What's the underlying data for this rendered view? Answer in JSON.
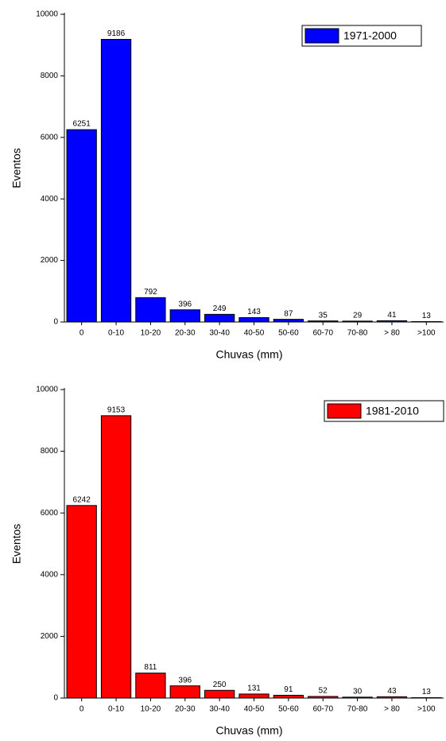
{
  "chart_data": [
    {
      "type": "bar",
      "x_label": "Chuvas (mm)",
      "y_label": "Eventos",
      "categories": [
        "0",
        "0-10",
        "10-20",
        "20-30",
        "30-40",
        "40-50",
        "50-60",
        "60-70",
        "70-80",
        "> 80",
        ">100"
      ],
      "series": [
        {
          "name": "1971-2000",
          "color": "#0000ff",
          "values": [
            6251,
            9186,
            792,
            396,
            249,
            143,
            87,
            35,
            29,
            41,
            13
          ]
        }
      ],
      "ylim": [
        0,
        10000
      ],
      "yticks": [
        0,
        2000,
        4000,
        6000,
        8000,
        10000
      ],
      "legend": "upper-right"
    },
    {
      "type": "bar",
      "x_label": "Chuvas (mm)",
      "y_label": "Eventos",
      "categories": [
        "0",
        "0-10",
        "10-20",
        "20-30",
        "30-40",
        "40-50",
        "50-60",
        "60-70",
        "70-80",
        "> 80",
        ">100"
      ],
      "series": [
        {
          "name": "1981-2010",
          "color": "#ff0000",
          "values": [
            6242,
            9153,
            811,
            396,
            250,
            131,
            91,
            52,
            30,
            43,
            13
          ]
        }
      ],
      "ylim": [
        0,
        10000
      ],
      "yticks": [
        0,
        2000,
        4000,
        6000,
        8000,
        10000
      ],
      "legend": "upper-right"
    }
  ]
}
